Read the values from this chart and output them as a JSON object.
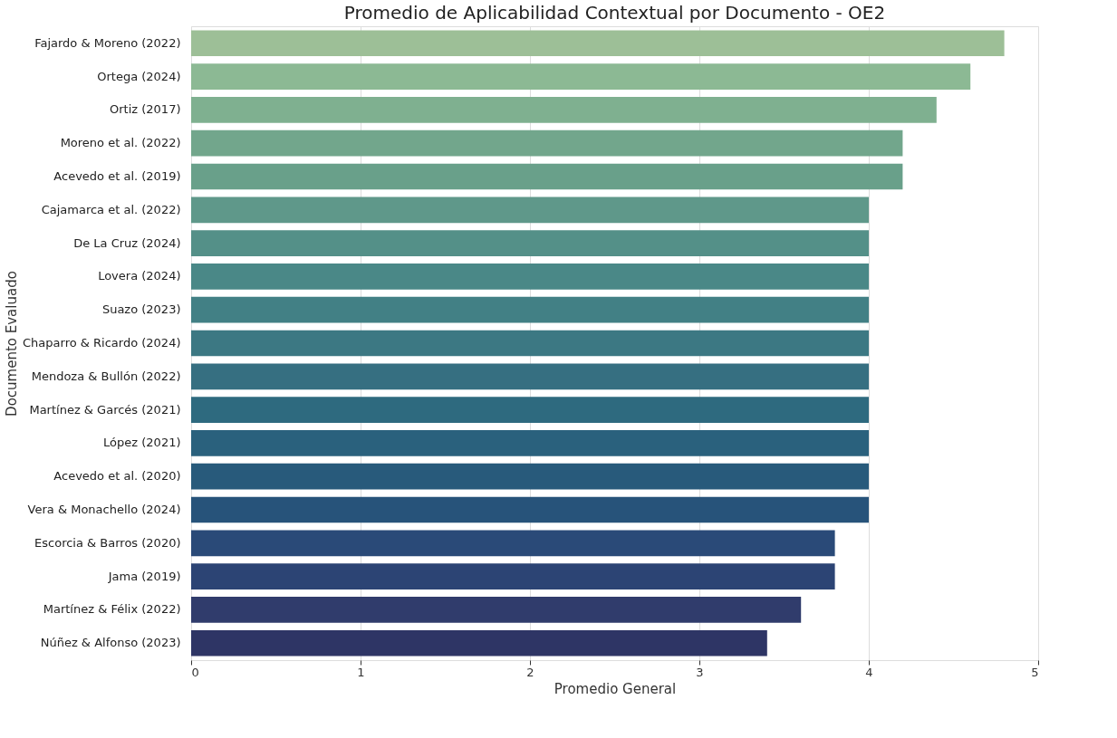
{
  "chart_data": {
    "type": "bar",
    "orientation": "horizontal",
    "title": "Promedio de Aplicabilidad Contextual por Documento - OE2",
    "xlabel": "Promedio General",
    "ylabel": "Documento Evaluado",
    "categories": [
      "Fajardo & Moreno (2022)",
      "Ortega (2024)",
      "Ortiz (2017)",
      "Moreno et al. (2022)",
      "Acevedo et al. (2019)",
      "Cajamarca et al. (2022)",
      "De La Cruz (2024)",
      "Lovera (2024)",
      "Suazo (2023)",
      "Chaparro & Ricardo (2024)",
      "Mendoza & Bullón (2022)",
      "Martínez & Garcés (2021)",
      "López (2021)",
      "Acevedo et al. (2020)",
      "Vera & Monachello (2024)",
      "Escorcia & Barros (2020)",
      "Jama (2019)",
      "Martínez & Félix (2022)",
      "Núñez & Alfonso (2023)"
    ],
    "values": [
      4.8,
      4.6,
      4.4,
      4.2,
      4.2,
      4.0,
      4.0,
      4.0,
      4.0,
      4.0,
      4.0,
      4.0,
      4.0,
      4.0,
      4.0,
      3.8,
      3.8,
      3.6,
      3.4
    ],
    "colors": [
      "#9dbf97",
      "#8cb994",
      "#7fb090",
      "#72a68c",
      "#69a08a",
      "#5f988a",
      "#549088",
      "#4a8887",
      "#428085",
      "#3c7883",
      "#366f81",
      "#2e6a7f",
      "#2a617d",
      "#285a7b",
      "#27537a",
      "#2a4a78",
      "#2c4474",
      "#303c6c",
      "#2e3565"
    ],
    "xlim": [
      0,
      5
    ],
    "xticks": [
      0,
      1,
      2,
      3,
      4,
      5
    ],
    "grid": "x"
  }
}
